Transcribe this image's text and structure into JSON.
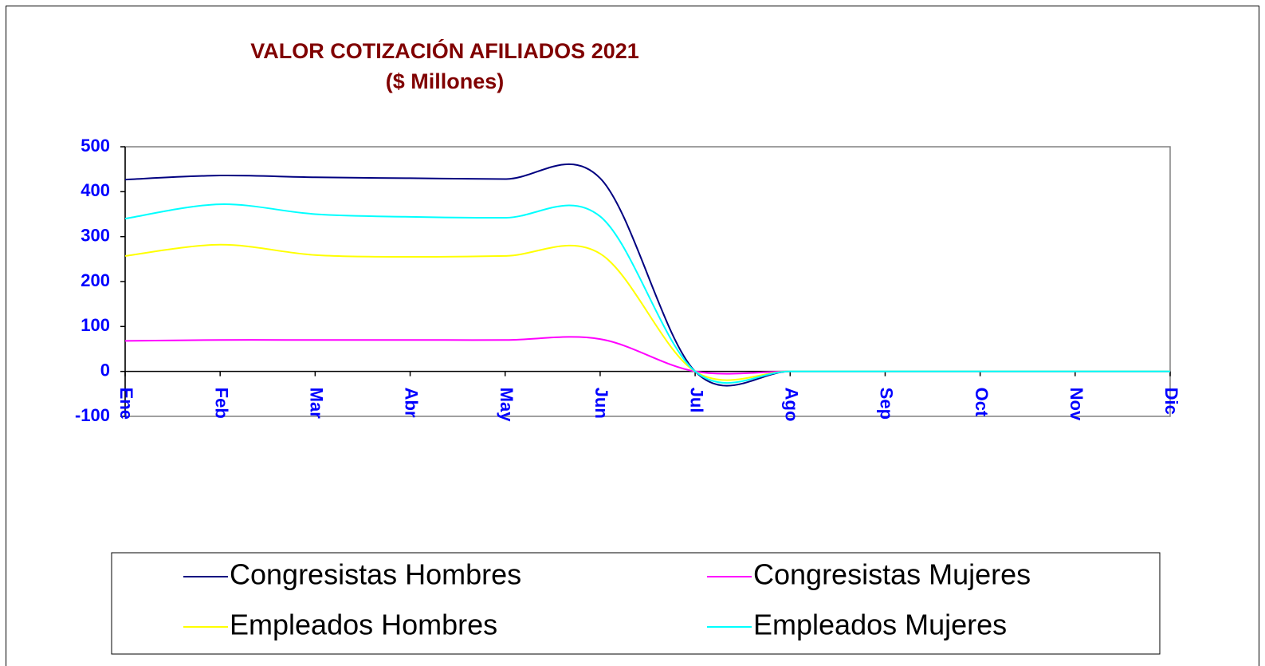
{
  "chart_data": {
    "type": "line",
    "title": "VALOR COTIZACIÓN AFILIADOS 2021",
    "subtitle": "($ Millones)",
    "categories": [
      "Ene",
      "Feb",
      "Mar",
      "Abr",
      "May",
      "Jun",
      "Jul",
      "Ago",
      "Sep",
      "Oct",
      "Nov",
      "Dic"
    ],
    "series": [
      {
        "name": "Congresistas Hombres",
        "color": "#000080",
        "values": [
          427,
          436,
          432,
          430,
          428,
          430,
          0,
          0,
          0,
          0,
          0,
          0
        ]
      },
      {
        "name": "Congresistas Mujeres",
        "color": "#ff00ff",
        "values": [
          68,
          70,
          70,
          70,
          70,
          72,
          0,
          0,
          0,
          0,
          0,
          0
        ]
      },
      {
        "name": "Empleados Hombres",
        "color": "#ffff00",
        "values": [
          257,
          282,
          259,
          255,
          257,
          262,
          0,
          0,
          0,
          0,
          0,
          0
        ]
      },
      {
        "name": "Empleados Mujeres",
        "color": "#00ffff",
        "values": [
          340,
          372,
          350,
          344,
          342,
          345,
          0,
          0,
          0,
          0,
          0,
          0
        ]
      }
    ],
    "ylim": [
      -100,
      500
    ],
    "yticks": [
      -100,
      0,
      100,
      200,
      300,
      400,
      500
    ],
    "smooth": true,
    "legend": "bottom"
  }
}
